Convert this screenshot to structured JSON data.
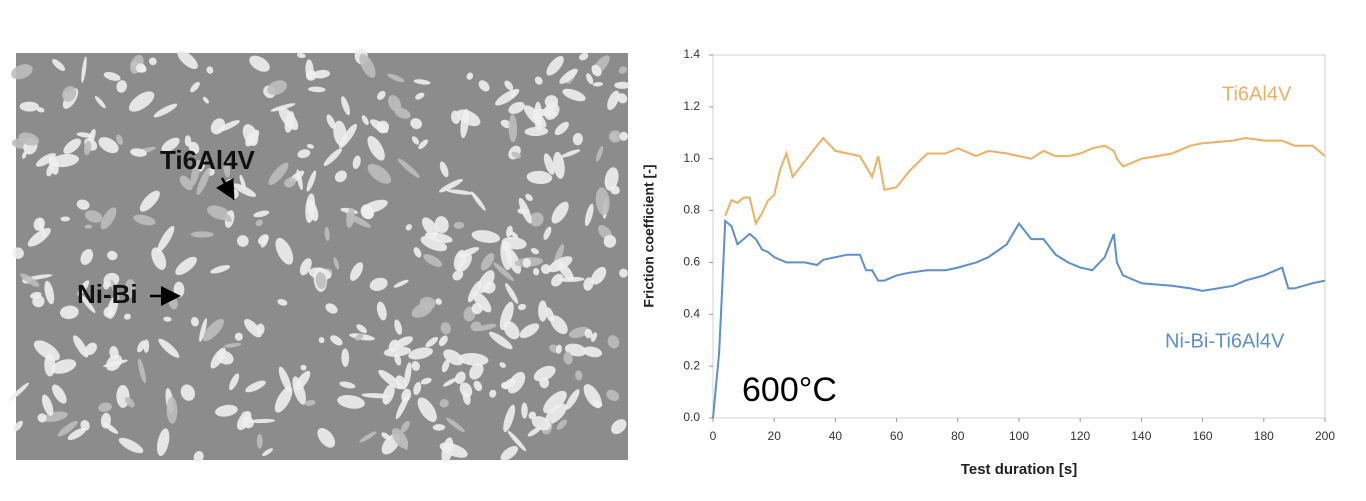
{
  "image": {
    "labels": [
      "Ti6Al4V",
      "Ni-Bi"
    ]
  },
  "chart_data": {
    "type": "line",
    "xlabel": "Test duration [s]",
    "ylabel": "Friction coefficient [-]",
    "annotation": "600°C",
    "x": [
      0,
      2,
      3,
      4,
      6,
      8,
      10,
      12,
      14,
      16,
      18,
      20,
      22,
      24,
      26,
      30,
      34,
      36,
      40,
      44,
      48,
      50,
      52,
      54,
      56,
      60,
      64,
      70,
      76,
      80,
      86,
      90,
      96,
      100,
      104,
      108,
      112,
      116,
      120,
      124,
      128,
      131,
      132,
      134,
      140,
      150,
      156,
      160,
      170,
      174,
      180,
      186,
      188,
      190,
      196,
      200
    ],
    "series": [
      {
        "name": "Ti6Al4V",
        "color": "#f0b060",
        "values": [
          null,
          null,
          null,
          0.78,
          0.84,
          0.83,
          0.85,
          0.85,
          0.75,
          0.79,
          0.84,
          0.86,
          0.96,
          1.02,
          0.93,
          0.99,
          1.05,
          1.08,
          1.03,
          1.02,
          1.01,
          0.97,
          0.93,
          1.01,
          0.88,
          0.89,
          0.95,
          1.02,
          1.02,
          1.04,
          1.01,
          1.03,
          1.02,
          1.01,
          1.0,
          1.03,
          1.01,
          1.01,
          1.02,
          1.04,
          1.05,
          1.03,
          1.0,
          0.97,
          1.0,
          1.02,
          1.05,
          1.06,
          1.07,
          1.08,
          1.07,
          1.07,
          1.06,
          1.05,
          1.05,
          1.01
        ]
      },
      {
        "name": "Ni-Bi-Ti6Al4V",
        "color": "#5b8fd1",
        "values": [
          0.0,
          0.25,
          0.5,
          0.76,
          0.74,
          0.67,
          0.69,
          0.71,
          0.69,
          0.65,
          0.64,
          0.62,
          0.61,
          0.6,
          0.6,
          0.6,
          0.59,
          0.61,
          0.62,
          0.63,
          0.63,
          0.57,
          0.57,
          0.53,
          0.53,
          0.55,
          0.56,
          0.57,
          0.57,
          0.58,
          0.6,
          0.62,
          0.67,
          0.75,
          0.69,
          0.69,
          0.63,
          0.6,
          0.58,
          0.57,
          0.62,
          0.71,
          0.6,
          0.55,
          0.52,
          0.51,
          0.5,
          0.49,
          0.51,
          0.53,
          0.55,
          0.58,
          0.5,
          0.5,
          0.52,
          0.53
        ]
      }
    ],
    "xlim": [
      0,
      200
    ],
    "xticks": [
      0,
      20,
      40,
      60,
      80,
      100,
      120,
      140,
      160,
      180,
      200
    ],
    "ylim": [
      0,
      1.4
    ],
    "yticks": [
      {
        "value": 0,
        "label": "0.0"
      },
      0.2,
      0.4,
      0.6,
      0.8,
      {
        "value": 1,
        "label": "1.0"
      },
      1.2,
      1.4
    ]
  }
}
